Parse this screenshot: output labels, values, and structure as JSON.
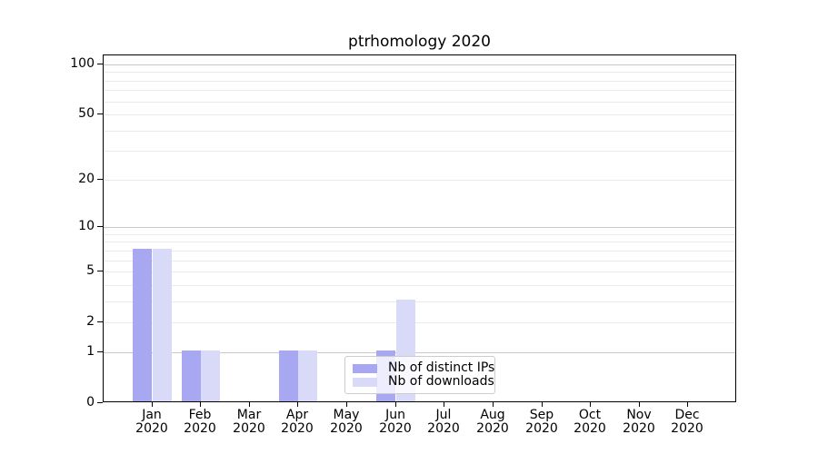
{
  "chart_data": {
    "type": "bar",
    "title": "ptrhomology 2020",
    "categories": [
      "Jan 2020",
      "Feb 2020",
      "Mar 2020",
      "Apr 2020",
      "May 2020",
      "Jun 2020",
      "Jul 2020",
      "Aug 2020",
      "Sep 2020",
      "Oct 2020",
      "Nov 2020",
      "Dec 2020"
    ],
    "x_tick_line1": [
      "Jan",
      "Feb",
      "Mar",
      "Apr",
      "May",
      "Jun",
      "Jul",
      "Aug",
      "Sep",
      "Oct",
      "Nov",
      "Dec"
    ],
    "x_tick_line2": [
      "2020",
      "2020",
      "2020",
      "2020",
      "2020",
      "2020",
      "2020",
      "2020",
      "2020",
      "2020",
      "2020",
      "2020"
    ],
    "series": [
      {
        "name": "Nb of distinct IPs",
        "color": "#a7a7f2",
        "values": [
          7,
          1,
          0,
          1,
          0,
          1,
          0,
          0,
          0,
          0,
          0,
          0
        ]
      },
      {
        "name": "Nb of downloads",
        "color": "#d9d9f8",
        "values": [
          7,
          1,
          0,
          1,
          0,
          3,
          0,
          0,
          0,
          0,
          0,
          0
        ]
      }
    ],
    "yscale": "log1p",
    "ylim": [
      0,
      114
    ],
    "y_tick_values": [
      0,
      1,
      2,
      5,
      10,
      20,
      50,
      100
    ],
    "y_tick_labels": [
      "0",
      "1",
      "2",
      "5",
      "10",
      "20",
      "50",
      "100"
    ],
    "grid_major_values": [
      1,
      10,
      100
    ],
    "grid_minor_values": [
      2,
      3,
      4,
      5,
      6,
      7,
      8,
      9,
      20,
      30,
      40,
      50,
      60,
      70,
      80,
      90
    ],
    "legend": {
      "position": "lower center",
      "entries": [
        "Nb of distinct IPs",
        "Nb of downloads"
      ]
    },
    "colors": {
      "grid_major": "#c9c9c9",
      "grid_minor": "#eaeaea",
      "spine": "#000000",
      "text": "#000000",
      "legend_border": "#cccccc"
    }
  }
}
